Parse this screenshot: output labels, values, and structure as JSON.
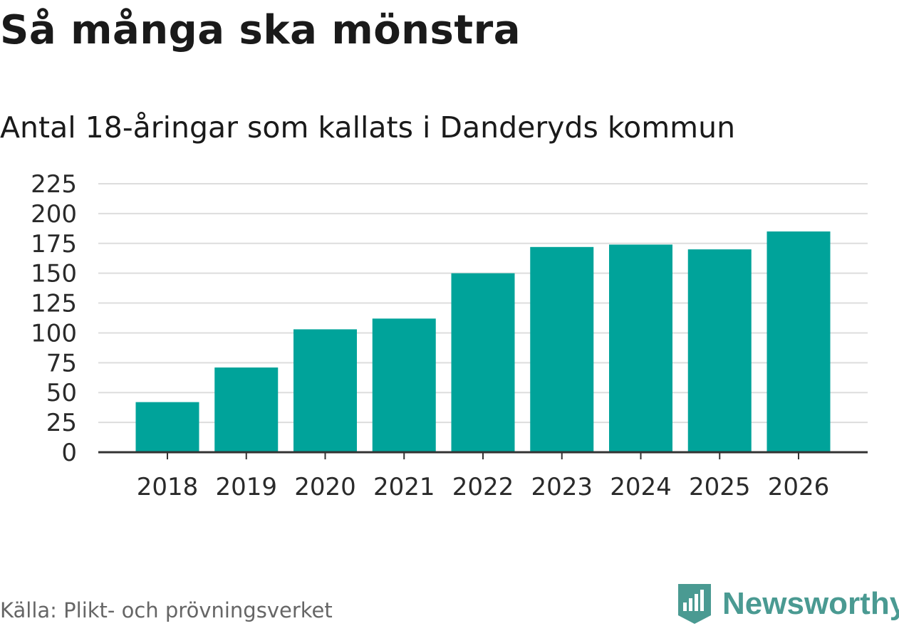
{
  "header": {
    "title": "Så många ska mönstra",
    "subtitle": "Antal 18-åringar som kallats i Danderyds kommun"
  },
  "footer": {
    "source": "Källa: Plikt- och prövningsverket",
    "brand": "Newsworthy"
  },
  "colors": {
    "bar": "#00a39a",
    "grid": "#dddddd",
    "axis": "#333333",
    "brand": "#4a9a92"
  },
  "chart_data": {
    "type": "bar",
    "title": "Så många ska mönstra",
    "subtitle": "Antal 18-åringar som kallats i Danderyds kommun",
    "categories": [
      "2018",
      "2019",
      "2020",
      "2021",
      "2022",
      "2023",
      "2024",
      "2025",
      "2026"
    ],
    "values": [
      42,
      71,
      103,
      112,
      150,
      172,
      174,
      170,
      185
    ],
    "yticks": [
      0,
      25,
      50,
      75,
      100,
      125,
      150,
      175,
      200,
      225
    ],
    "ylim": [
      0,
      225
    ],
    "xlabel": "",
    "ylabel": "",
    "grid": true
  }
}
